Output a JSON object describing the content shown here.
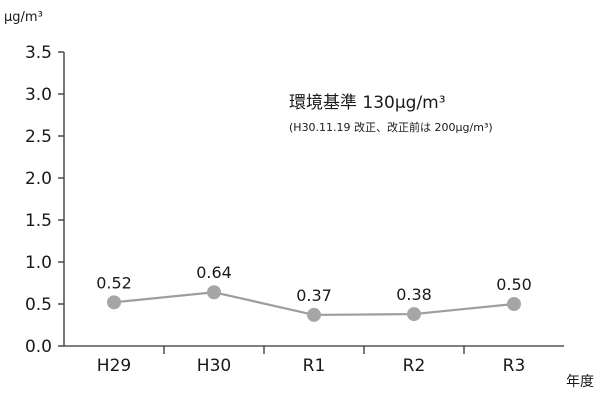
{
  "chart_data": {
    "type": "line",
    "categories": [
      "H29",
      "H30",
      "R1",
      "R2",
      "R3"
    ],
    "series": [
      {
        "values": [
          0.52,
          0.64,
          0.37,
          0.38,
          0.5
        ],
        "labels": [
          "0.52",
          "0.64",
          "0.37",
          "0.38",
          "0.50"
        ]
      }
    ],
    "ylim": [
      0,
      3.5
    ],
    "yticks": [
      "0.0",
      "0.5",
      "1.0",
      "1.5",
      "2.0",
      "2.5",
      "3.0",
      "3.5"
    ],
    "ylabel": "μg/m³",
    "xlabel": "年度",
    "grid": false,
    "annotation": {
      "main": "環境基準 130μg/m³",
      "sub": "(H30.11.19 改正、改正前は 200μg/m³)"
    },
    "colors": {
      "line": "#9e9e9e",
      "marker": "#a6a6a6",
      "axis": "#333333"
    }
  }
}
